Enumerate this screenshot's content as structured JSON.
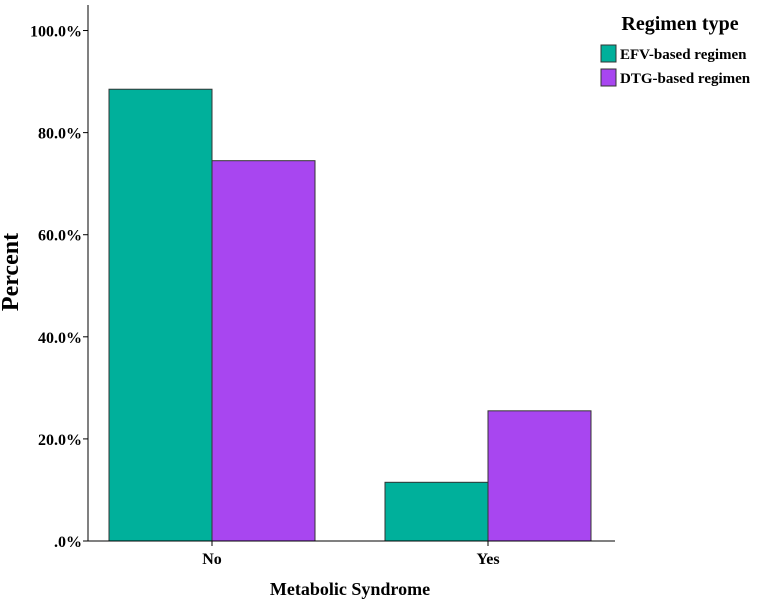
{
  "chart_data": {
    "type": "bar",
    "xlabel": "Metabolic Syndrome",
    "ylabel": "Percent",
    "categories": [
      "No",
      "Yes"
    ],
    "series": [
      {
        "name": "EFV-based regimen",
        "values": [
          88.5,
          11.5
        ],
        "color": "#00b09b"
      },
      {
        "name": "DTG-based regimen",
        "values": [
          74.5,
          25.5
        ],
        "color": "#a846f0"
      }
    ],
    "ylim": [
      0,
      105
    ],
    "yticks": [
      0,
      20,
      40,
      60,
      80,
      100
    ],
    "ytick_labels": [
      ".0%",
      "20.0%",
      "40.0%",
      "60.0%",
      "80.0%",
      "100.0%"
    ],
    "grid": false,
    "legend": {
      "title": "Regimen type",
      "position": "top-right"
    }
  }
}
